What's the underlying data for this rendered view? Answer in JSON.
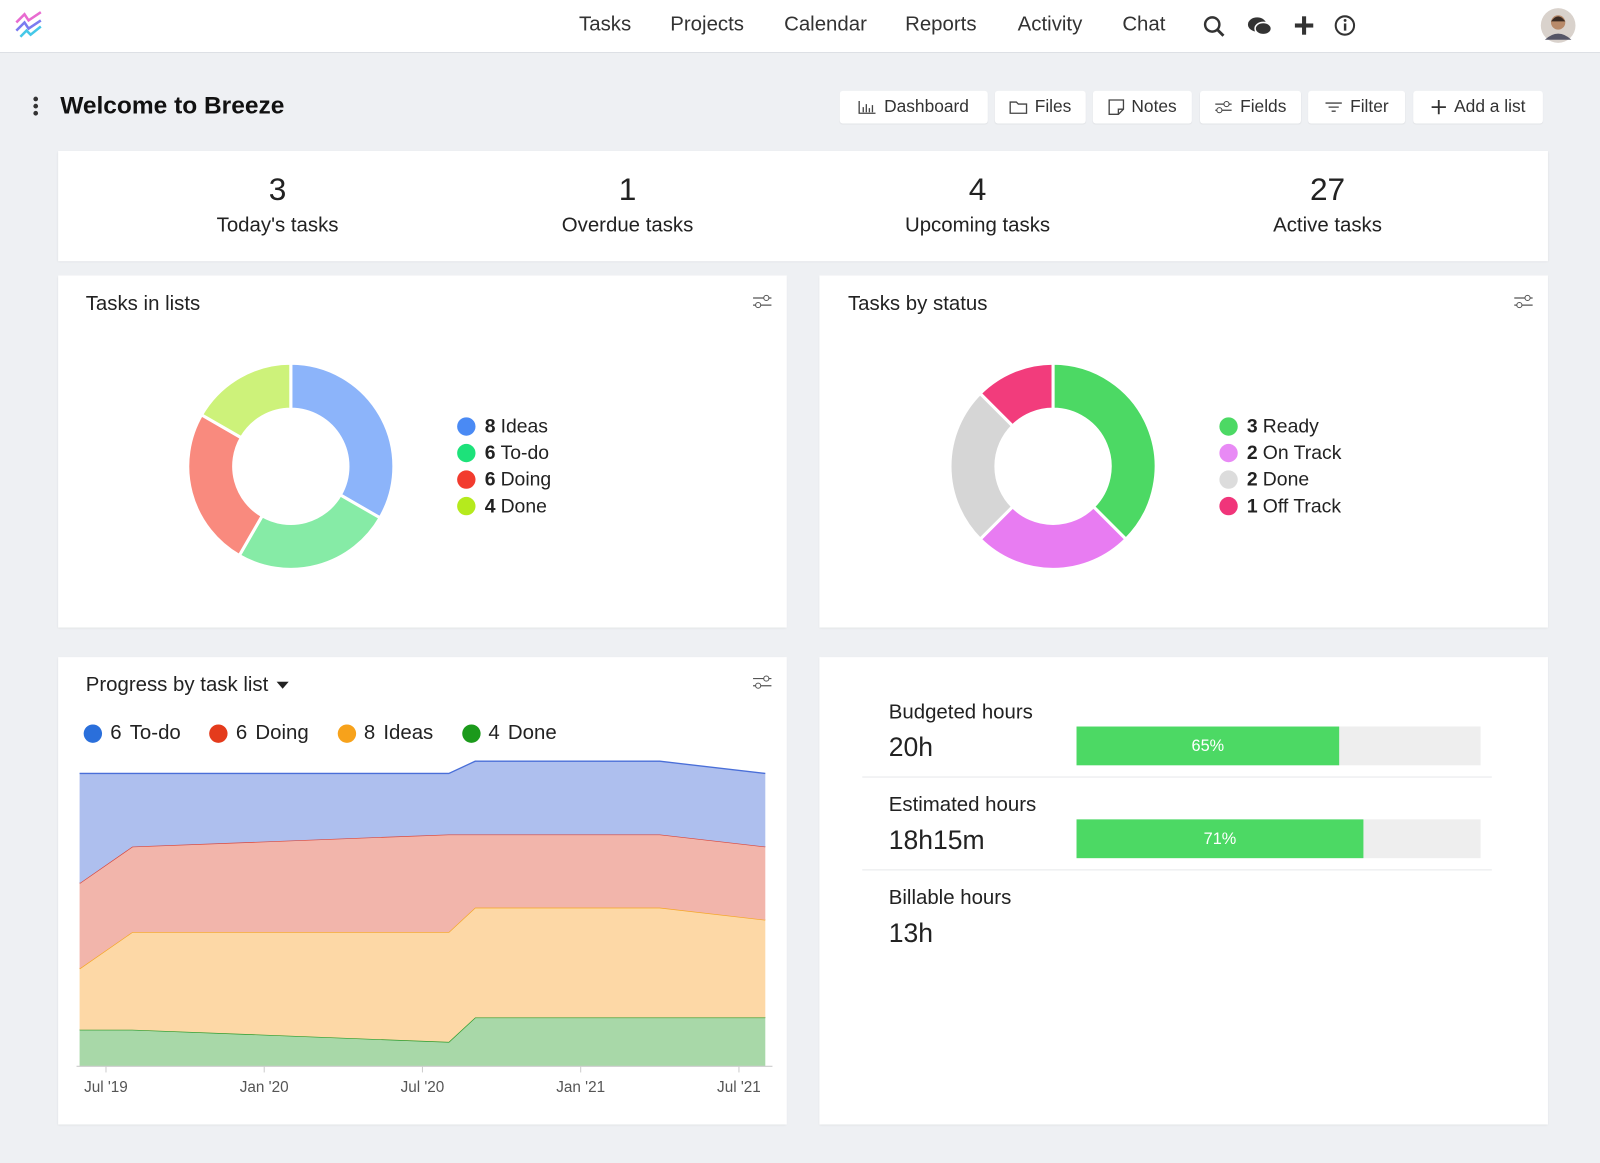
{
  "nav": {
    "items": [
      "Tasks",
      "Projects",
      "Calendar",
      "Reports",
      "Activity",
      "Chat"
    ]
  },
  "header": {
    "title": "Welcome to Breeze",
    "buttons": [
      "Dashboard",
      "Files",
      "Notes",
      "Fields",
      "Filter",
      "Add a list"
    ]
  },
  "stats": [
    {
      "value": 3,
      "label": "Today's tasks"
    },
    {
      "value": 1,
      "label": "Overdue tasks"
    },
    {
      "value": 4,
      "label": "Upcoming tasks"
    },
    {
      "value": 27,
      "label": "Active tasks"
    }
  ],
  "chart_data": [
    {
      "type": "pie",
      "title": "Tasks in lists",
      "categories": [
        "Ideas",
        "To-do",
        "Doing",
        "Done"
      ],
      "values": [
        8,
        6,
        6,
        4
      ],
      "colors": [
        "#8cb4fa",
        "#86eba6",
        "#f98a7e",
        "#cdf27a"
      ],
      "legend_colors": [
        "#4a8af4",
        "#1de27a",
        "#f23b2e",
        "#b5ea1d"
      ]
    },
    {
      "type": "pie",
      "title": "Tasks by status",
      "categories": [
        "Ready",
        "On Track",
        "Done",
        "Off Track"
      ],
      "values": [
        3,
        2,
        2,
        1
      ],
      "colors": [
        "#4cd964",
        "#e87cf2",
        "#d6d6d6",
        "#f23c7c"
      ],
      "legend_colors": [
        "#4cd964",
        "#e88af5",
        "#dcdcdc",
        "#f0357a"
      ]
    },
    {
      "type": "area",
      "title": "Progress by task list",
      "x": [
        "2019-06",
        "2019-08",
        "2020-08",
        "2020-09",
        "2021-04",
        "2021-08"
      ],
      "xlim": [
        "2019-06",
        "2021-08"
      ],
      "xticks": [
        {
          "value": "2019-07",
          "label": "Jul '19"
        },
        {
          "value": "2020-01",
          "label": "Jan '20"
        },
        {
          "value": "2020-07",
          "label": "Jul '20"
        },
        {
          "value": "2021-01",
          "label": "Jan '21"
        },
        {
          "value": "2021-07",
          "label": "Jul '21"
        }
      ],
      "series": [
        {
          "name": "To-do",
          "count": 6,
          "color": "#2a6fdb",
          "fill": "#aebfee",
          "line": "#4a6fd8",
          "values": [
            9,
            6,
            5,
            6,
            6,
            6
          ]
        },
        {
          "name": "Doing",
          "count": 6,
          "color": "#e43b1c",
          "fill": "#f2b5ab",
          "line": "#d9453a",
          "values": [
            7,
            7,
            8,
            6,
            6,
            6
          ]
        },
        {
          "name": "Ideas",
          "count": 8,
          "color": "#f7a21b",
          "fill": "#fdd8a6",
          "line": "#f5a623",
          "values": [
            5,
            8,
            9,
            9,
            9,
            8
          ]
        },
        {
          "name": "Done",
          "count": 4,
          "color": "#1b9a1b",
          "fill": "#a8d8a8",
          "line": "#2a9a2a",
          "values": [
            3,
            3,
            2,
            4,
            4,
            4
          ]
        }
      ]
    }
  ],
  "hours": [
    {
      "label": "Budgeted hours",
      "value": "20h",
      "percent": {
        "value": 65,
        "label": "65%"
      }
    },
    {
      "label": "Estimated hours",
      "value": "18h15m",
      "percent": {
        "value": 71,
        "label": "71%"
      }
    },
    {
      "label": "Billable hours",
      "value": "13h"
    }
  ]
}
